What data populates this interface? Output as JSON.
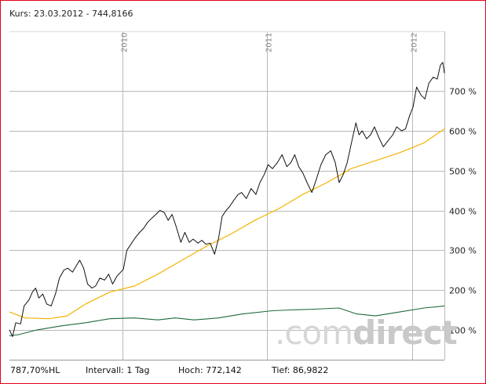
{
  "header": {
    "kurs_label": "Kurs: 23.03.2012 - 744,8166"
  },
  "watermark": {
    "light": ".com",
    "bold": "direct"
  },
  "footer": {
    "hl": "787,70%HL",
    "intervall": "Intervall: 1 Tag",
    "hoch": "Hoch:  772,142",
    "tief": "Tief: 86,9822"
  },
  "colors": {
    "frame": "#e4001f",
    "grid": "#b9b9b9",
    "price": "#111111",
    "moving_average": "#f2b400",
    "benchmark": "#1e6b3c"
  },
  "chart_data": {
    "type": "line",
    "title": "",
    "y_unit": "%",
    "ylim": [
      25,
      850
    ],
    "y_ticks": [
      100,
      200,
      300,
      400,
      500,
      600,
      700
    ],
    "y_tick_labels": [
      "100 %",
      "200 %",
      "300 %",
      "400 %",
      "500 %",
      "600 %",
      "700 %"
    ],
    "y_axis_position": "right",
    "x_range": [
      "2009-03-23",
      "2012-03-23"
    ],
    "x_ticks": [
      "2010-01-01",
      "2011-01-01",
      "2012-01-01"
    ],
    "x_tick_labels": [
      "2010",
      "2011",
      "2012"
    ],
    "grid": true,
    "series": [
      {
        "name": "",
        "role": "price",
        "points": [
          [
            "2009-03-23",
            100
          ],
          [
            "2009-03-31",
            83
          ],
          [
            "2009-04-08",
            118
          ],
          [
            "2009-04-20",
            115
          ],
          [
            "2009-04-29",
            160
          ],
          [
            "2009-05-11",
            175
          ],
          [
            "2009-05-20",
            195
          ],
          [
            "2009-05-28",
            205
          ],
          [
            "2009-06-05",
            180
          ],
          [
            "2009-06-15",
            190
          ],
          [
            "2009-06-25",
            165
          ],
          [
            "2009-07-06",
            160
          ],
          [
            "2009-07-17",
            190
          ],
          [
            "2009-07-27",
            230
          ],
          [
            "2009-08-07",
            250
          ],
          [
            "2009-08-17",
            255
          ],
          [
            "2009-08-29",
            245
          ],
          [
            "2009-09-07",
            260
          ],
          [
            "2009-09-16",
            275
          ],
          [
            "2009-09-26",
            255
          ],
          [
            "2009-10-06",
            215
          ],
          [
            "2009-10-17",
            205
          ],
          [
            "2009-10-26",
            210
          ],
          [
            "2009-11-06",
            230
          ],
          [
            "2009-11-18",
            225
          ],
          [
            "2009-11-28",
            240
          ],
          [
            "2009-12-08",
            215
          ],
          [
            "2009-12-19",
            235
          ],
          [
            "2010-01-04",
            252
          ],
          [
            "2010-01-13",
            300
          ],
          [
            "2010-01-23",
            315
          ],
          [
            "2010-02-02",
            330
          ],
          [
            "2010-02-14",
            345
          ],
          [
            "2010-02-24",
            355
          ],
          [
            "2010-03-06",
            370
          ],
          [
            "2010-03-16",
            380
          ],
          [
            "2010-03-27",
            390
          ],
          [
            "2010-04-06",
            400
          ],
          [
            "2010-04-17",
            395
          ],
          [
            "2010-04-27",
            375
          ],
          [
            "2010-05-07",
            390
          ],
          [
            "2010-05-17",
            360
          ],
          [
            "2010-05-29",
            320
          ],
          [
            "2010-06-08",
            345
          ],
          [
            "2010-06-19",
            320
          ],
          [
            "2010-06-29",
            328
          ],
          [
            "2010-07-11",
            318
          ],
          [
            "2010-07-21",
            325
          ],
          [
            "2010-07-31",
            315
          ],
          [
            "2010-08-11",
            318
          ],
          [
            "2010-08-22",
            290
          ],
          [
            "2010-09-01",
            330
          ],
          [
            "2010-09-10",
            385
          ],
          [
            "2010-09-20",
            400
          ],
          [
            "2010-09-29",
            410
          ],
          [
            "2010-10-09",
            425
          ],
          [
            "2010-10-20",
            440
          ],
          [
            "2010-10-29",
            445
          ],
          [
            "2010-11-10",
            430
          ],
          [
            "2010-11-22",
            455
          ],
          [
            "2010-12-04",
            440
          ],
          [
            "2010-12-14",
            470
          ],
          [
            "2010-12-25",
            490
          ],
          [
            "2011-01-04",
            515
          ],
          [
            "2011-01-15",
            505
          ],
          [
            "2011-01-27",
            520
          ],
          [
            "2011-02-08",
            540
          ],
          [
            "2011-02-20",
            510
          ],
          [
            "2011-03-02",
            520
          ],
          [
            "2011-03-12",
            540
          ],
          [
            "2011-03-22",
            510
          ],
          [
            "2011-04-01",
            495
          ],
          [
            "2011-04-12",
            470
          ],
          [
            "2011-04-24",
            445
          ],
          [
            "2011-05-06",
            480
          ],
          [
            "2011-05-17",
            515
          ],
          [
            "2011-05-29",
            540
          ],
          [
            "2011-06-11",
            550
          ],
          [
            "2011-06-22",
            520
          ],
          [
            "2011-07-02",
            470
          ],
          [
            "2011-07-12",
            490
          ],
          [
            "2011-07-22",
            520
          ],
          [
            "2011-08-03",
            575
          ],
          [
            "2011-08-13",
            620
          ],
          [
            "2011-08-21",
            590
          ],
          [
            "2011-08-29",
            600
          ],
          [
            "2011-09-09",
            580
          ],
          [
            "2011-09-19",
            590
          ],
          [
            "2011-09-29",
            610
          ],
          [
            "2011-10-09",
            585
          ],
          [
            "2011-10-21",
            560
          ],
          [
            "2011-11-02",
            575
          ],
          [
            "2011-11-14",
            590
          ],
          [
            "2011-11-24",
            610
          ],
          [
            "2011-12-06",
            600
          ],
          [
            "2011-12-16",
            605
          ],
          [
            "2011-12-27",
            640
          ],
          [
            "2012-01-04",
            660
          ],
          [
            "2012-01-13",
            710
          ],
          [
            "2012-01-24",
            690
          ],
          [
            "2012-02-03",
            680
          ],
          [
            "2012-02-13",
            720
          ],
          [
            "2012-02-24",
            735
          ],
          [
            "2012-03-05",
            730
          ],
          [
            "2012-03-13",
            765
          ],
          [
            "2012-03-19",
            772
          ],
          [
            "2012-03-23",
            745
          ]
        ]
      },
      {
        "name": "",
        "role": "moving_average",
        "points": [
          [
            "2009-03-23",
            145
          ],
          [
            "2009-05-01",
            130
          ],
          [
            "2009-07-01",
            128
          ],
          [
            "2009-08-15",
            135
          ],
          [
            "2009-10-01",
            165
          ],
          [
            "2009-12-01",
            195
          ],
          [
            "2010-02-01",
            210
          ],
          [
            "2010-04-01",
            240
          ],
          [
            "2010-06-01",
            275
          ],
          [
            "2010-08-01",
            310
          ],
          [
            "2010-10-01",
            340
          ],
          [
            "2010-12-01",
            375
          ],
          [
            "2011-02-01",
            405
          ],
          [
            "2011-04-01",
            440
          ],
          [
            "2011-06-01",
            470
          ],
          [
            "2011-08-01",
            505
          ],
          [
            "2011-10-01",
            525
          ],
          [
            "2011-12-01",
            545
          ],
          [
            "2012-02-01",
            570
          ],
          [
            "2012-03-23",
            605
          ]
        ]
      },
      {
        "name": "",
        "role": "benchmark",
        "points": [
          [
            "2009-03-23",
            85
          ],
          [
            "2009-04-15",
            88
          ],
          [
            "2009-06-01",
            100
          ],
          [
            "2009-08-01",
            110
          ],
          [
            "2009-10-01",
            118
          ],
          [
            "2009-12-01",
            128
          ],
          [
            "2010-02-01",
            130
          ],
          [
            "2010-04-01",
            125
          ],
          [
            "2010-05-15",
            130
          ],
          [
            "2010-07-01",
            125
          ],
          [
            "2010-09-01",
            130
          ],
          [
            "2010-11-01",
            140
          ],
          [
            "2011-01-15",
            148
          ],
          [
            "2011-03-01",
            150
          ],
          [
            "2011-05-01",
            152
          ],
          [
            "2011-07-01",
            155
          ],
          [
            "2011-08-15",
            140
          ],
          [
            "2011-10-01",
            135
          ],
          [
            "2011-12-01",
            145
          ],
          [
            "2012-02-01",
            155
          ],
          [
            "2012-03-23",
            160
          ]
        ]
      }
    ]
  }
}
